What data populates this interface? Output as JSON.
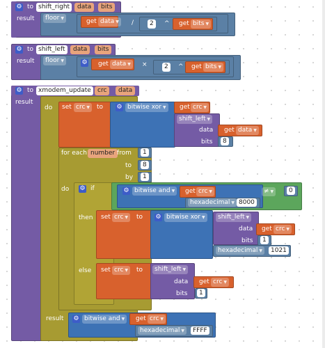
{
  "blocks": {
    "shift_right": {
      "to": "to",
      "name": "shift_right",
      "params": [
        "data",
        "bits"
      ],
      "result": "result",
      "floor": "floor",
      "get": "get",
      "var1": "data",
      "op": "/",
      "num": "2",
      "pow": "^",
      "var2": "bits"
    },
    "shift_left": {
      "to": "to",
      "name": "shift_left",
      "params": [
        "data",
        "bits"
      ],
      "result": "result",
      "floor": "floor",
      "get": "get",
      "var1": "data",
      "op": "×",
      "num": "2",
      "pow": "^",
      "var2": "bits"
    },
    "xmodem": {
      "to": "to",
      "name": "xmodem_update",
      "params": [
        "crc",
        "data"
      ],
      "result_label": "result",
      "do": "do",
      "set": "set",
      "set_to": "to",
      "set_var": "crc",
      "xor": "bitwise xor",
      "get": "get",
      "get_crc": "crc",
      "shift_left_call": "shift_left",
      "arg_data": "data",
      "arg_bits": "bits",
      "get_data": "data",
      "bits_val": "8",
      "for_each": "for each",
      "loop_var": "number",
      "from": "from",
      "from_val": "1",
      "to_label": "to",
      "to_val": "8",
      "by": "by",
      "by_val": "1",
      "do2": "do",
      "if": "if",
      "bitwise_and": "bitwise and",
      "hexadecimal": "hexadecimal",
      "hex1": "8000",
      "neq": "≠",
      "zero": "0",
      "then": "then",
      "hex2": "1021",
      "one": "1",
      "else": "else",
      "result": "result",
      "hex3": "FFFF"
    }
  },
  "icon_names": {
    "gear": "gear-icon",
    "dropdown": "chevron-down-icon"
  },
  "colors": {
    "procedure": "#745ba5",
    "math": "#5b80a5",
    "bitwise": "#3d72b5",
    "variable": "#d8612d",
    "control": "#a79b32",
    "logic": "#5ca65c"
  }
}
